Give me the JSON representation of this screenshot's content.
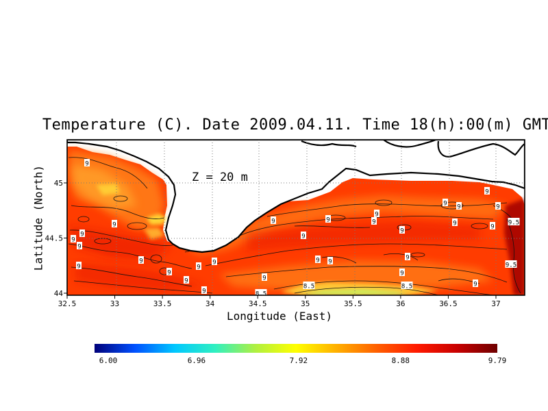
{
  "title": "Temperature (C). Date 2009.04.11. Time 18(h):00(m) GMT",
  "depth_label": "Z = 20 m",
  "xlabel": "Longitude (East)",
  "ylabel": "Latitude (North)",
  "x_ticks": [
    "32.5",
    "33",
    "33.5",
    "34",
    "34.5",
    "35",
    "35.5",
    "36",
    "36.5",
    "37"
  ],
  "y_ticks": [
    "45",
    "44.5",
    "44"
  ],
  "colorbar": {
    "ticks": [
      "6.00",
      "6.96",
      "7.92",
      "8.88",
      "9.79"
    ],
    "min": 6.0,
    "max": 9.79,
    "colors": [
      "#00007a",
      "#0050ff",
      "#00c8ff",
      "#30f0c0",
      "#b0f040",
      "#ffff00",
      "#ffb000",
      "#ff6000",
      "#ff1a00",
      "#c80000",
      "#6e0000"
    ]
  },
  "contour_labels": [
    "9",
    "9",
    "9",
    "9",
    "9",
    "9",
    "9",
    "9",
    "9",
    "9",
    "9",
    "9",
    "9",
    "9",
    "9",
    "9",
    "9",
    "9",
    "9",
    "9",
    "9",
    "9",
    "9",
    "9",
    "9",
    "9",
    "9",
    "9",
    "9",
    "9",
    "9.5",
    "9.5",
    "8.5",
    "8.5",
    "8.5"
  ],
  "chart_data": {
    "type": "heatmap",
    "title": "Temperature (C). Date 2009.04.11. Time 18(h):00(m) GMT",
    "xlabel": "Longitude (East)",
    "ylabel": "Latitude (North)",
    "xlim": [
      32.5,
      37.3
    ],
    "ylim": [
      43.98,
      45.35
    ],
    "value_range": [
      6.0,
      9.79
    ],
    "contour_levels": [
      8.5,
      9,
      9.5
    ],
    "grid": true
  }
}
